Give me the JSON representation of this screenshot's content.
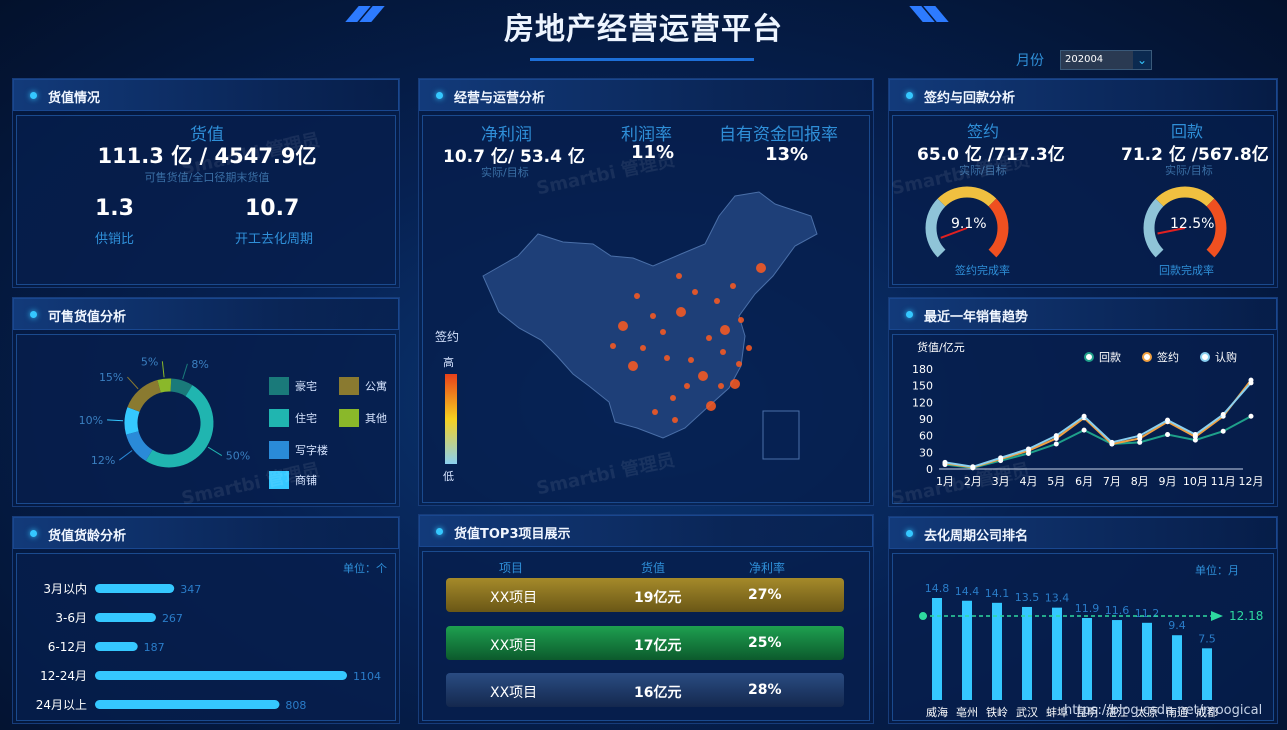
{
  "header": {
    "title": "房地产经营运营平台",
    "month_label": "月份",
    "month_value": "202004"
  },
  "panels": {
    "huozhi": "货值情况",
    "kesho": "可售货值分析",
    "huoling": "货值货龄分析",
    "jingying": "经营与运营分析",
    "top3": "货值TOP3项目展示",
    "qianyue": "签约与回款分析",
    "trend": "最近一年销售趋势",
    "rank": "去化周期公司排名"
  },
  "huozhi": {
    "label": "货值",
    "value": "111.3 亿 / 4547.9亿",
    "sub": "可售货值/全口径期末货值",
    "ratio": "1.3",
    "ratio_label": "供销比",
    "cycle": "10.7",
    "cycle_label": "开工去化周期"
  },
  "jingying": {
    "metrics": [
      {
        "label": "净利润",
        "value": "10.7 亿/ 53.4 亿",
        "sub": "实际/目标"
      },
      {
        "label": "利润率",
        "value": "11%"
      },
      {
        "label": "自有资金回报率",
        "value": "13%"
      }
    ],
    "legend_title": "签约",
    "legend_high": "高",
    "legend_low": "低"
  },
  "qianyue": {
    "sign_label": "签约",
    "sign_value": "65.0 亿 /717.3亿",
    "sign_sub": "实际/目标",
    "sign_rate": "9.1%",
    "sign_rate_value": 9.1,
    "sign_rate_label": "签约完成率",
    "pay_label": "回款",
    "pay_value": "71.2 亿 /567.8亿",
    "pay_sub": "实际/目标",
    "pay_rate": "12.5%",
    "pay_rate_value": 12.5,
    "pay_rate_label": "回款完成率"
  },
  "colors": {
    "haozhai": "#1a7a7a",
    "gongyu": "#8a7a30",
    "zhuzhai": "#20b5b0",
    "qita": "#8ab82a",
    "xiezilou": "#2a8ad8",
    "shangpu": "#35c8ff",
    "bar": "#35c8ff"
  },
  "top3": {
    "headers": [
      "项目",
      "货值",
      "净利率"
    ],
    "rows": [
      {
        "name": "XX项目",
        "value": "19亿元",
        "rate": "27%"
      },
      {
        "name": "XX项目",
        "value": "17亿元",
        "rate": "25%"
      },
      {
        "name": "XX项目",
        "value": "16亿元",
        "rate": "28%"
      }
    ]
  },
  "watermark": "Smartbi 管理员",
  "url_text": "https://blog.csdn.net/moogical",
  "chart_data": [
    {
      "type": "pie",
      "name": "可售货值分析",
      "categories": [
        "豪宅",
        "公寓",
        "住宅",
        "其他",
        "写字楼",
        "商铺"
      ],
      "values": [
        8,
        15,
        50,
        5,
        12,
        10
      ],
      "labels": [
        "8%",
        "15%",
        "50%",
        "5%",
        "12%",
        "10%"
      ]
    },
    {
      "type": "bar",
      "name": "货值货龄分析",
      "unit_label": "单位：个",
      "categories": [
        "3月以内",
        "3-6月",
        "6-12月",
        "12-24月",
        "24月以上"
      ],
      "values": [
        347,
        267,
        187,
        1104,
        808
      ]
    },
    {
      "type": "line",
      "ylabel": "货值/亿元",
      "categories": [
        "1月",
        "2月",
        "3月",
        "4月",
        "5月",
        "6月",
        "7月",
        "8月",
        "9月",
        "10月",
        "11月",
        "12月"
      ],
      "ylim": [
        0,
        180
      ],
      "yticks": [
        0,
        30,
        60,
        90,
        120,
        150,
        180
      ],
      "series": [
        {
          "name": "回款",
          "values": [
            8,
            2,
            15,
            28,
            45,
            70,
            45,
            48,
            62,
            52,
            68,
            95
          ]
        },
        {
          "name": "签约",
          "values": [
            10,
            3,
            18,
            33,
            55,
            92,
            45,
            55,
            85,
            58,
            95,
            160
          ]
        },
        {
          "name": "认购",
          "values": [
            12,
            4,
            20,
            36,
            60,
            95,
            48,
            60,
            88,
            62,
            98,
            155
          ]
        }
      ]
    },
    {
      "type": "bar",
      "name": "去化周期公司排名",
      "unit_label": "单位：月",
      "categories": [
        "威海",
        "亳州",
        "铁岭",
        "武汉",
        "蚌埠",
        "昆明",
        "湛江",
        "太原",
        "南通",
        "成都"
      ],
      "values": [
        14.8,
        14.4,
        14.1,
        13.5,
        13.4,
        11.9,
        11.6,
        11.2,
        9.4,
        7.5
      ],
      "average": 12.18,
      "average_label": "12.18"
    }
  ]
}
